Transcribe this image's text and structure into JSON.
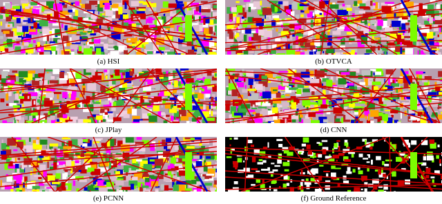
{
  "figure": {
    "panels": [
      {
        "caption": "(a) HSI"
      },
      {
        "caption": "(b) OTVCA"
      },
      {
        "caption": "(c) JPlay"
      },
      {
        "caption": "(d) CNN"
      },
      {
        "caption": "(e) PCNN"
      },
      {
        "caption": "(f) Ground Reference"
      }
    ]
  }
}
